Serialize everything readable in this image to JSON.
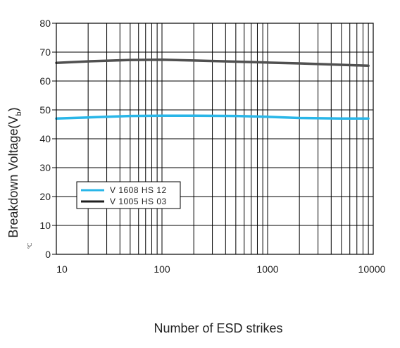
{
  "chart_data": {
    "type": "line",
    "x_scale": "log",
    "xlim": [
      10,
      10000
    ],
    "ylim": [
      0,
      80
    ],
    "grid": true,
    "xlabel": "Number of ESD strikes",
    "ylabel": "Breakdown Voltage(V",
    "ylabel_subscript": "b",
    "ylabel_suffix": ")",
    "ylabel_small_mark": "℃",
    "x_tick_labels": [
      "10",
      "100",
      "1000",
      "10000"
    ],
    "y_tick_labels": [
      "0",
      "10",
      "20",
      "30",
      "40",
      "50",
      "60",
      "70",
      "80"
    ],
    "legend_position": "center-left",
    "series": [
      {
        "name": "V 1608 HS 12",
        "color": "#29b6e8",
        "x": [
          10,
          20,
          50,
          100,
          200,
          500,
          1000,
          2000,
          5000,
          9000
        ],
        "y": [
          47.0,
          47.4,
          47.9,
          48.0,
          48.0,
          47.9,
          47.6,
          47.2,
          47.0,
          47.0
        ]
      },
      {
        "name": "V 1005 HS 03",
        "color": "#505050",
        "x": [
          10,
          20,
          50,
          100,
          200,
          500,
          1000,
          2000,
          5000,
          9000
        ],
        "y": [
          66.3,
          66.8,
          67.3,
          67.4,
          67.1,
          66.7,
          66.4,
          66.1,
          65.6,
          65.3
        ]
      }
    ]
  }
}
